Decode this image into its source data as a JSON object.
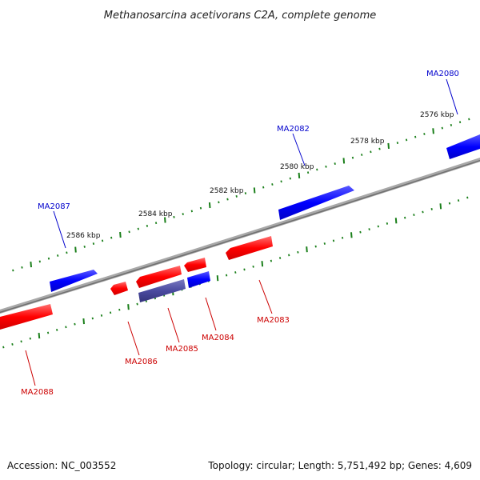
{
  "title": "Methanosarcina acetivorans C2A, complete genome",
  "accession": "Accession: NC_003552",
  "topology": "Topology: circular; Length: 5,751,492 bp; Genes: 4,609",
  "colors": {
    "forward_strand": "#0000ff",
    "reverse_strand": "#ff0000",
    "highlighted_gene": "#4a4aa0",
    "tick": "#1a7f1a",
    "backbone": "#808080"
  },
  "scale_labels": [
    "2576 kbp",
    "2578 kbp",
    "2580 kbp",
    "2582 kbp",
    "2584 kbp",
    "2586 kbp"
  ],
  "genes": [
    {
      "name": "MA2080",
      "strand": "forward"
    },
    {
      "name": "MA2082",
      "strand": "forward"
    },
    {
      "name": "MA2087",
      "strand": "forward"
    },
    {
      "name": "MA2083",
      "strand": "reverse"
    },
    {
      "name": "MA2084",
      "strand": "reverse"
    },
    {
      "name": "MA2085",
      "strand": "reverse"
    },
    {
      "name": "MA2086",
      "strand": "reverse"
    },
    {
      "name": "MA2088",
      "strand": "reverse"
    }
  ]
}
